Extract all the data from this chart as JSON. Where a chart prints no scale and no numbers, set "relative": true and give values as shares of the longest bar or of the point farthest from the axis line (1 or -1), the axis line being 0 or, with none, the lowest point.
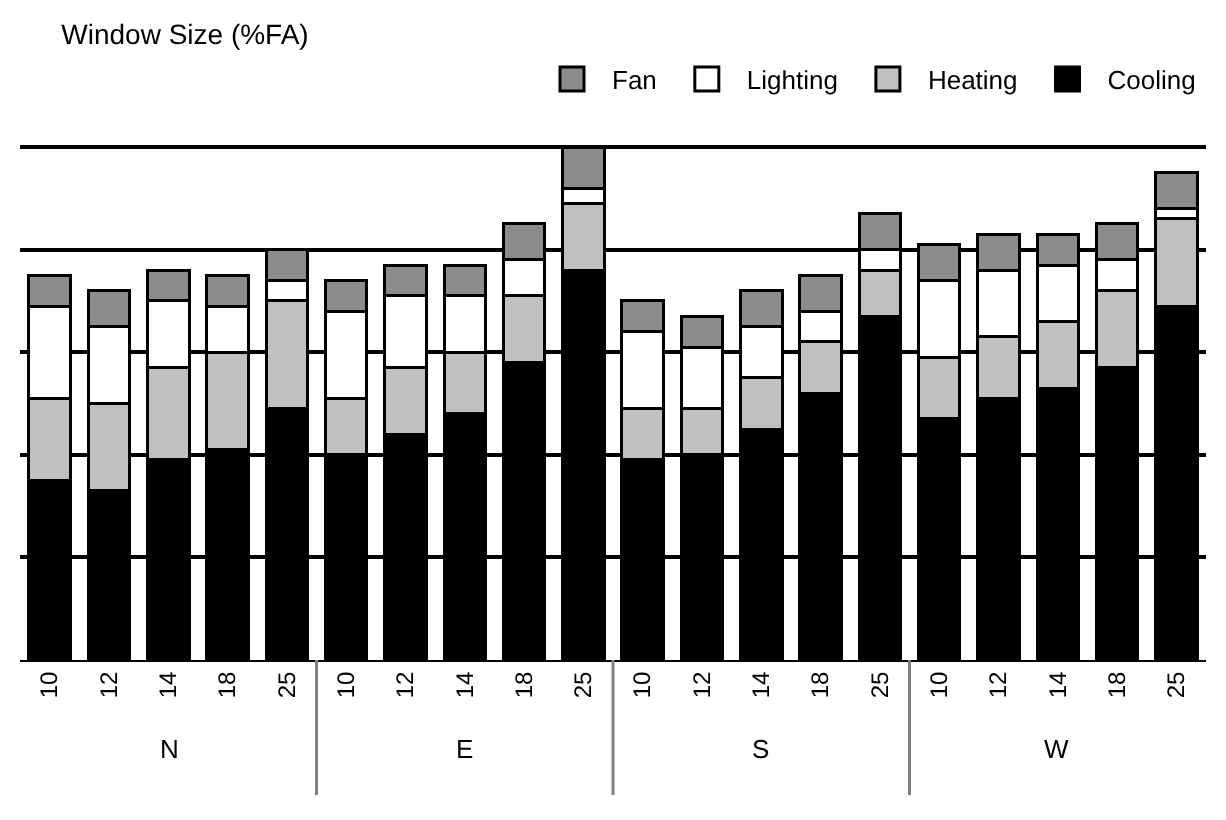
{
  "chart_data": {
    "type": "bar",
    "title": "Window Size (%FA)",
    "relative": true,
    "stacked": true,
    "grid": "y",
    "legend": "top right",
    "categories": [
      "10",
      "12",
      "14",
      "18",
      "25",
      "10",
      "12",
      "14",
      "18",
      "25",
      "10",
      "12",
      "14",
      "18",
      "25",
      "10",
      "12",
      "14",
      "18",
      "25"
    ],
    "annotations": [
      "N",
      "E",
      "S",
      "W"
    ],
    "series": [
      {
        "name": "Cooling",
        "color": "#000000",
        "values": [
          0.35,
          0.33,
          0.39,
          0.41,
          0.49,
          0.4,
          0.44,
          0.48,
          0.58,
          0.76,
          0.39,
          0.4,
          0.45,
          0.52,
          0.67,
          0.47,
          0.51,
          0.53,
          0.57,
          0.69
        ]
      },
      {
        "name": "Heating",
        "color": "#c0c0c0",
        "values": [
          0.16,
          0.17,
          0.18,
          0.19,
          0.21,
          0.11,
          0.13,
          0.12,
          0.13,
          0.13,
          0.1,
          0.09,
          0.1,
          0.1,
          0.09,
          0.12,
          0.12,
          0.13,
          0.15,
          0.17
        ]
      },
      {
        "name": "Lighting",
        "color": "#ffffff",
        "values": [
          0.18,
          0.15,
          0.13,
          0.09,
          0.04,
          0.17,
          0.14,
          0.11,
          0.07,
          0.03,
          0.15,
          0.12,
          0.1,
          0.06,
          0.04,
          0.15,
          0.13,
          0.11,
          0.06,
          0.02
        ]
      },
      {
        "name": "Fan",
        "color": "#8c8c8c",
        "values": [
          0.06,
          0.07,
          0.06,
          0.06,
          0.06,
          0.06,
          0.06,
          0.06,
          0.07,
          0.08,
          0.06,
          0.06,
          0.07,
          0.07,
          0.07,
          0.07,
          0.07,
          0.06,
          0.07,
          0.07
        ]
      }
    ]
  }
}
